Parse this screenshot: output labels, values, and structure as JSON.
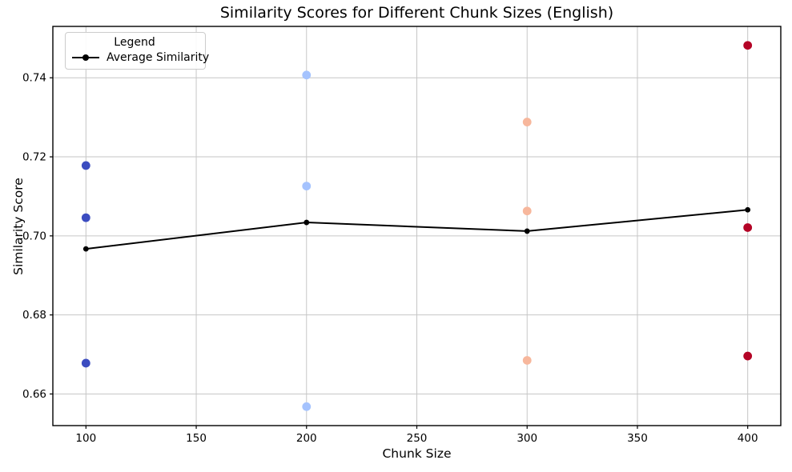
{
  "figure": {
    "title": "Similarity Scores for Different Chunk Sizes (English)",
    "xlabel": "Chunk Size",
    "ylabel": "Similarity Score"
  },
  "legend": {
    "title": "Legend",
    "entries": [
      {
        "label": "Average Similarity",
        "marker": "line-dot-icon",
        "color": "#000000"
      }
    ]
  },
  "chart_data": {
    "type": "scatter",
    "title": "Similarity Scores for Different Chunk Sizes (English)",
    "xlabel": "Chunk Size",
    "ylabel": "Similarity Score",
    "xlim": [
      85,
      415
    ],
    "ylim": [
      0.652,
      0.753
    ],
    "x_ticks": [
      100,
      150,
      200,
      250,
      300,
      350,
      400
    ],
    "y_ticks": [
      0.66,
      0.68,
      0.7,
      0.72,
      0.74
    ],
    "grid": true,
    "grid_color": "#c6c6c6",
    "legend_position": "upper-left",
    "scatter_groups": [
      {
        "chunk_size": 100,
        "color": "#3b4cc0",
        "values": [
          0.7178,
          0.7046,
          0.6678
        ]
      },
      {
        "chunk_size": 200,
        "color": "#a5c3fe",
        "values": [
          0.7407,
          0.7126,
          0.6568
        ]
      },
      {
        "chunk_size": 300,
        "color": "#f7b79c",
        "values": [
          0.7288,
          0.7063,
          0.6685
        ]
      },
      {
        "chunk_size": 400,
        "color": "#b40426",
        "values": [
          0.7482,
          0.7021,
          0.6696
        ]
      }
    ],
    "average_series": {
      "name": "Average Similarity",
      "color": "#000000",
      "x": [
        100,
        200,
        300,
        400
      ],
      "y": [
        0.6967,
        0.7034,
        0.7012,
        0.7066
      ]
    }
  }
}
